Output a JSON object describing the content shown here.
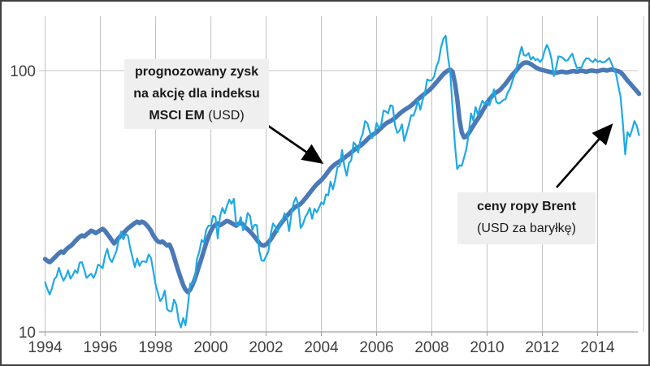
{
  "colors": {
    "eps_line": "#4B79B7",
    "brent_line": "#1FA9E4",
    "gridline": "#c3c3c3",
    "axis": "#a0a0a0",
    "tick_text": "#404040",
    "annotation_bg": "#efefef",
    "frame": "#3f3f3f",
    "arrow": "#000000"
  },
  "annotations": {
    "msci": {
      "line1": "prognozowany zysk",
      "line2": "na akcję dla indeksu",
      "line3_bold": "MSCI EM",
      "line3_normal": " (USD)"
    },
    "brent": {
      "line1": "ceny ropy Brent",
      "line2": "(USD za baryłkę)"
    }
  },
  "chart_data": {
    "type": "line",
    "title": "",
    "xlabel": "",
    "ylabel": "",
    "x_scale": "linear",
    "y_scale": "log",
    "xlim": [
      1993.8,
      2015.6
    ],
    "ylim": [
      10,
      161
    ],
    "grid": "vertical-every-2-years-plus-horizontal-at-100",
    "legend_position": "none (labeled via arrow annotations)",
    "x_start_year": 1994,
    "points_interval": "monthly",
    "x_tick_labels": [
      "1994",
      "1996",
      "1998",
      "2000",
      "2002",
      "2004",
      "2006",
      "2008",
      "2010",
      "2012",
      "2014"
    ],
    "y_ticks": [
      {
        "label": "100",
        "value": 100
      },
      {
        "label": "10",
        "value": 10
      }
    ],
    "series": [
      {
        "name": "prognozowany zysk na akcję dla indeksu MSCI EM (USD)",
        "color_key": "eps_line",
        "stroke_width": 5.5,
        "values": [
          19.0,
          18.7,
          18.5,
          18.8,
          19.2,
          19.6,
          20.0,
          20.3,
          20.1,
          20.6,
          21.0,
          21.3,
          21.7,
          22.2,
          22.7,
          23.1,
          23.4,
          23.2,
          23.6,
          24.0,
          24.4,
          24.2,
          23.9,
          24.2,
          24.5,
          24.8,
          24.4,
          23.7,
          23.1,
          22.4,
          21.8,
          22.3,
          22.9,
          23.4,
          23.9,
          24.4,
          24.9,
          25.3,
          25.7,
          26.1,
          26.4,
          26.1,
          26.4,
          26.2,
          25.7,
          25.1,
          24.4,
          23.4,
          22.7,
          22.2,
          22.0,
          22.2,
          21.8,
          21.4,
          21.6,
          20.7,
          19.4,
          18.1,
          17.0,
          16.0,
          15.1,
          14.5,
          14.2,
          14.5,
          15.1,
          15.9,
          16.9,
          18.0,
          19.2,
          20.5,
          21.9,
          23.2,
          24.3,
          25.2,
          25.7,
          26.0,
          25.6,
          25.9,
          26.3,
          26.6,
          26.4,
          26.1,
          25.8,
          25.5,
          25.9,
          26.2,
          25.7,
          25.1,
          24.7,
          24.2,
          23.7,
          23.1,
          22.5,
          21.9,
          21.5,
          21.4,
          21.6,
          22.0,
          22.6,
          23.3,
          24.1,
          24.9,
          25.7,
          26.4,
          27.1,
          27.8,
          28.4,
          29.1,
          29.7,
          30.2,
          30.5,
          30.9,
          31.6,
          32.4,
          33.2,
          34.1,
          35.0,
          35.9,
          36.7,
          37.4,
          38.1,
          39.0,
          40.0,
          41.1,
          42.2,
          43.1,
          43.8,
          44.4,
          45.0,
          45.7,
          46.4,
          47.1,
          47.8,
          48.6,
          49.5,
          50.3,
          50.9,
          51.6,
          52.5,
          53.5,
          54.6,
          55.7,
          56.6,
          57.3,
          58.1,
          59.2,
          60.4,
          61.6,
          62.7,
          63.5,
          64.1,
          64.9,
          65.9,
          67.1,
          68.4,
          69.6,
          70.6,
          71.5,
          72.4,
          73.5,
          74.8,
          76.2,
          77.7,
          79.1,
          80.4,
          81.7,
          83.0,
          84.4,
          86.1,
          88.1,
          90.2,
          92.4,
          94.7,
          96.9,
          98.7,
          100.0,
          100.7,
          99.0,
          90.0,
          78.0,
          65.0,
          58.0,
          55.5,
          56.0,
          57.5,
          59.5,
          61.5,
          63.5,
          65.5,
          67.5,
          70.0,
          72.5,
          75.5,
          77.5,
          79.5,
          81.5,
          82.5,
          83.5,
          85.0,
          87.0,
          89.0,
          91.5,
          94.0,
          96.5,
          98.5,
          101.0,
          103.5,
          105.5,
          107.0,
          107.5,
          107.0,
          106.0,
          104.5,
          103.0,
          102.0,
          101.0,
          100.5,
          100.0,
          99.5,
          99.0,
          98.5,
          98.0,
          98.0,
          98.5,
          99.0,
          99.0,
          98.5,
          98.5,
          99.0,
          99.5,
          99.5,
          99.0,
          99.5,
          100.0,
          99.5,
          99.0,
          99.5,
          100.0,
          100.0,
          99.5,
          99.5,
          100.0,
          100.5,
          100.5,
          100.0,
          100.5,
          101.0,
          100.5,
          100.0,
          99.5,
          98.5,
          96.5,
          94.0,
          91.5,
          89.5,
          87.5,
          85.5,
          83.5,
          81.5
        ]
      },
      {
        "name": "ceny ropy Brent (USD za baryłkę)",
        "color_key": "brent_line",
        "stroke_width": 2.2,
        "values": [
          15.5,
          14.6,
          13.9,
          14.7,
          15.9,
          16.3,
          17.6,
          16.5,
          15.7,
          16.3,
          17.2,
          16.0,
          16.5,
          17.2,
          16.8,
          18.4,
          18.5,
          17.3,
          16.1,
          16.4,
          16.7,
          16.1,
          16.8,
          18.1,
          17.9,
          17.5,
          19.5,
          20.8,
          19.1,
          18.5,
          19.4,
          20.4,
          22.5,
          24.2,
          22.6,
          23.7,
          23.3,
          20.9,
          19.2,
          17.7,
          19.1,
          17.9,
          18.6,
          18.6,
          18.5,
          19.8,
          19.2,
          17.1,
          15.2,
          14.1,
          13.1,
          13.5,
          14.4,
          12.2,
          12.0,
          12.0,
          13.3,
          12.7,
          11.1,
          10.4,
          11.3,
          10.6,
          12.5,
          15.3,
          15.2,
          15.9,
          19.0,
          20.3,
          22.5,
          22.0,
          24.6,
          25.5,
          25.5,
          27.8,
          27.5,
          22.8,
          27.7,
          29.8,
          28.4,
          30.3,
          32.1,
          30.9,
          32.3,
          25.7,
          25.6,
          27.5,
          24.5,
          25.6,
          28.5,
          27.8,
          24.6,
          25.7,
          25.6,
          20.5,
          18.8,
          18.7,
          19.5,
          20.3,
          23.7,
          26.0,
          25.3,
          24.1,
          25.8,
          26.6,
          28.4,
          27.6,
          24.3,
          28.3,
          31.3,
          32.7,
          30.6,
          25.0,
          25.8,
          27.5,
          28.4,
          29.8,
          27.1,
          29.6,
          28.7,
          29.9,
          31.3,
          30.8,
          33.6,
          33.3,
          37.6,
          35.1,
          38.2,
          42.7,
          43.2,
          49.7,
          43.1,
          39.6,
          44.3,
          45.4,
          53.1,
          51.9,
          48.6,
          54.4,
          57.5,
          64.1,
          62.9,
          58.5,
          55.2,
          56.9,
          63.1,
          60.1,
          62.1,
          70.3,
          69.8,
          68.6,
          73.7,
          73.1,
          61.7,
          57.8,
          58.9,
          62.3,
          53.7,
          57.6,
          62.1,
          67.5,
          67.2,
          71.1,
          77.0,
          70.8,
          77.2,
          82.5,
          92.6,
          91.5,
          92.0,
          95.0,
          103.7,
          109.1,
          122.8,
          132.3,
          136.0,
          113.2,
          98.1,
          71.9,
          52.5,
          42.0,
          43.4,
          43.2,
          46.5,
          50.2,
          57.3,
          68.6,
          64.4,
          72.5,
          67.7,
          72.8,
          76.7,
          74.5,
          76.2,
          73.7,
          78.8,
          84.8,
          75.9,
          74.8,
          75.6,
          77.1,
          77.8,
          82.7,
          85.3,
          91.4,
          96.5,
          104.0,
          114.6,
          123.3,
          114.5,
          114.0,
          116.8,
          110.2,
          112.8,
          109.6,
          110.8,
          107.9,
          110.7,
          119.3,
          125.4,
          119.8,
          110.3,
          95.2,
          102.6,
          113.4,
          112.9,
          111.7,
          109.1,
          109.5,
          112.9,
          116.1,
          108.5,
          102.3,
          102.6,
          102.9,
          107.9,
          111.3,
          111.6,
          109.1,
          107.8,
          110.8,
          108.1,
          108.9,
          107.5,
          107.8,
          109.5,
          111.8,
          106.8,
          101.6,
          97.1,
          87.4,
          79.4,
          62.3,
          47.8,
          58.1,
          55.9,
          59.5,
          64.1,
          61.5,
          56.6
        ]
      }
    ]
  }
}
